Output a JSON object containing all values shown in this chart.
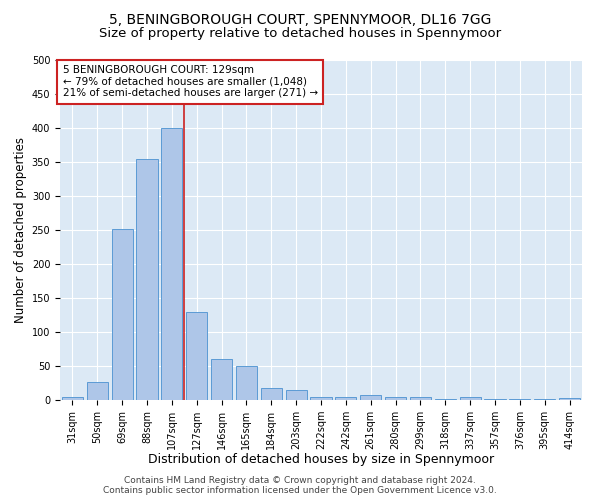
{
  "title_line1": "5, BENINGBOROUGH COURT, SPENNYMOOR, DL16 7GG",
  "title_line2": "Size of property relative to detached houses in Spennymoor",
  "xlabel": "Distribution of detached houses by size in Spennymoor",
  "ylabel": "Number of detached properties",
  "categories": [
    "31sqm",
    "50sqm",
    "69sqm",
    "88sqm",
    "107sqm",
    "127sqm",
    "146sqm",
    "165sqm",
    "184sqm",
    "203sqm",
    "222sqm",
    "242sqm",
    "261sqm",
    "280sqm",
    "299sqm",
    "318sqm",
    "337sqm",
    "357sqm",
    "376sqm",
    "395sqm",
    "414sqm"
  ],
  "values": [
    5,
    26,
    252,
    355,
    400,
    130,
    60,
    50,
    18,
    15,
    4,
    5,
    7,
    5,
    4,
    2,
    5,
    1,
    2,
    1,
    3
  ],
  "bar_color": "#aec6e8",
  "bar_edge_color": "#5b9bd5",
  "vline_x": 4.5,
  "vline_color": "#cc2222",
  "annotation_line1": "5 BENINGBOROUGH COURT: 129sqm",
  "annotation_line2": "← 79% of detached houses are smaller (1,048)",
  "annotation_line3": "21% of semi-detached houses are larger (271) →",
  "annotation_box_facecolor": "#ffffff",
  "annotation_box_edgecolor": "#cc2222",
  "ylim": [
    0,
    500
  ],
  "yticks": [
    0,
    50,
    100,
    150,
    200,
    250,
    300,
    350,
    400,
    450,
    500
  ],
  "background_color": "#dce9f5",
  "footer_line1": "Contains HM Land Registry data © Crown copyright and database right 2024.",
  "footer_line2": "Contains public sector information licensed under the Open Government Licence v3.0.",
  "title_fontsize": 10,
  "subtitle_fontsize": 9.5,
  "xlabel_fontsize": 9,
  "ylabel_fontsize": 8.5,
  "tick_fontsize": 7,
  "annotation_fontsize": 7.5,
  "footer_fontsize": 6.5
}
